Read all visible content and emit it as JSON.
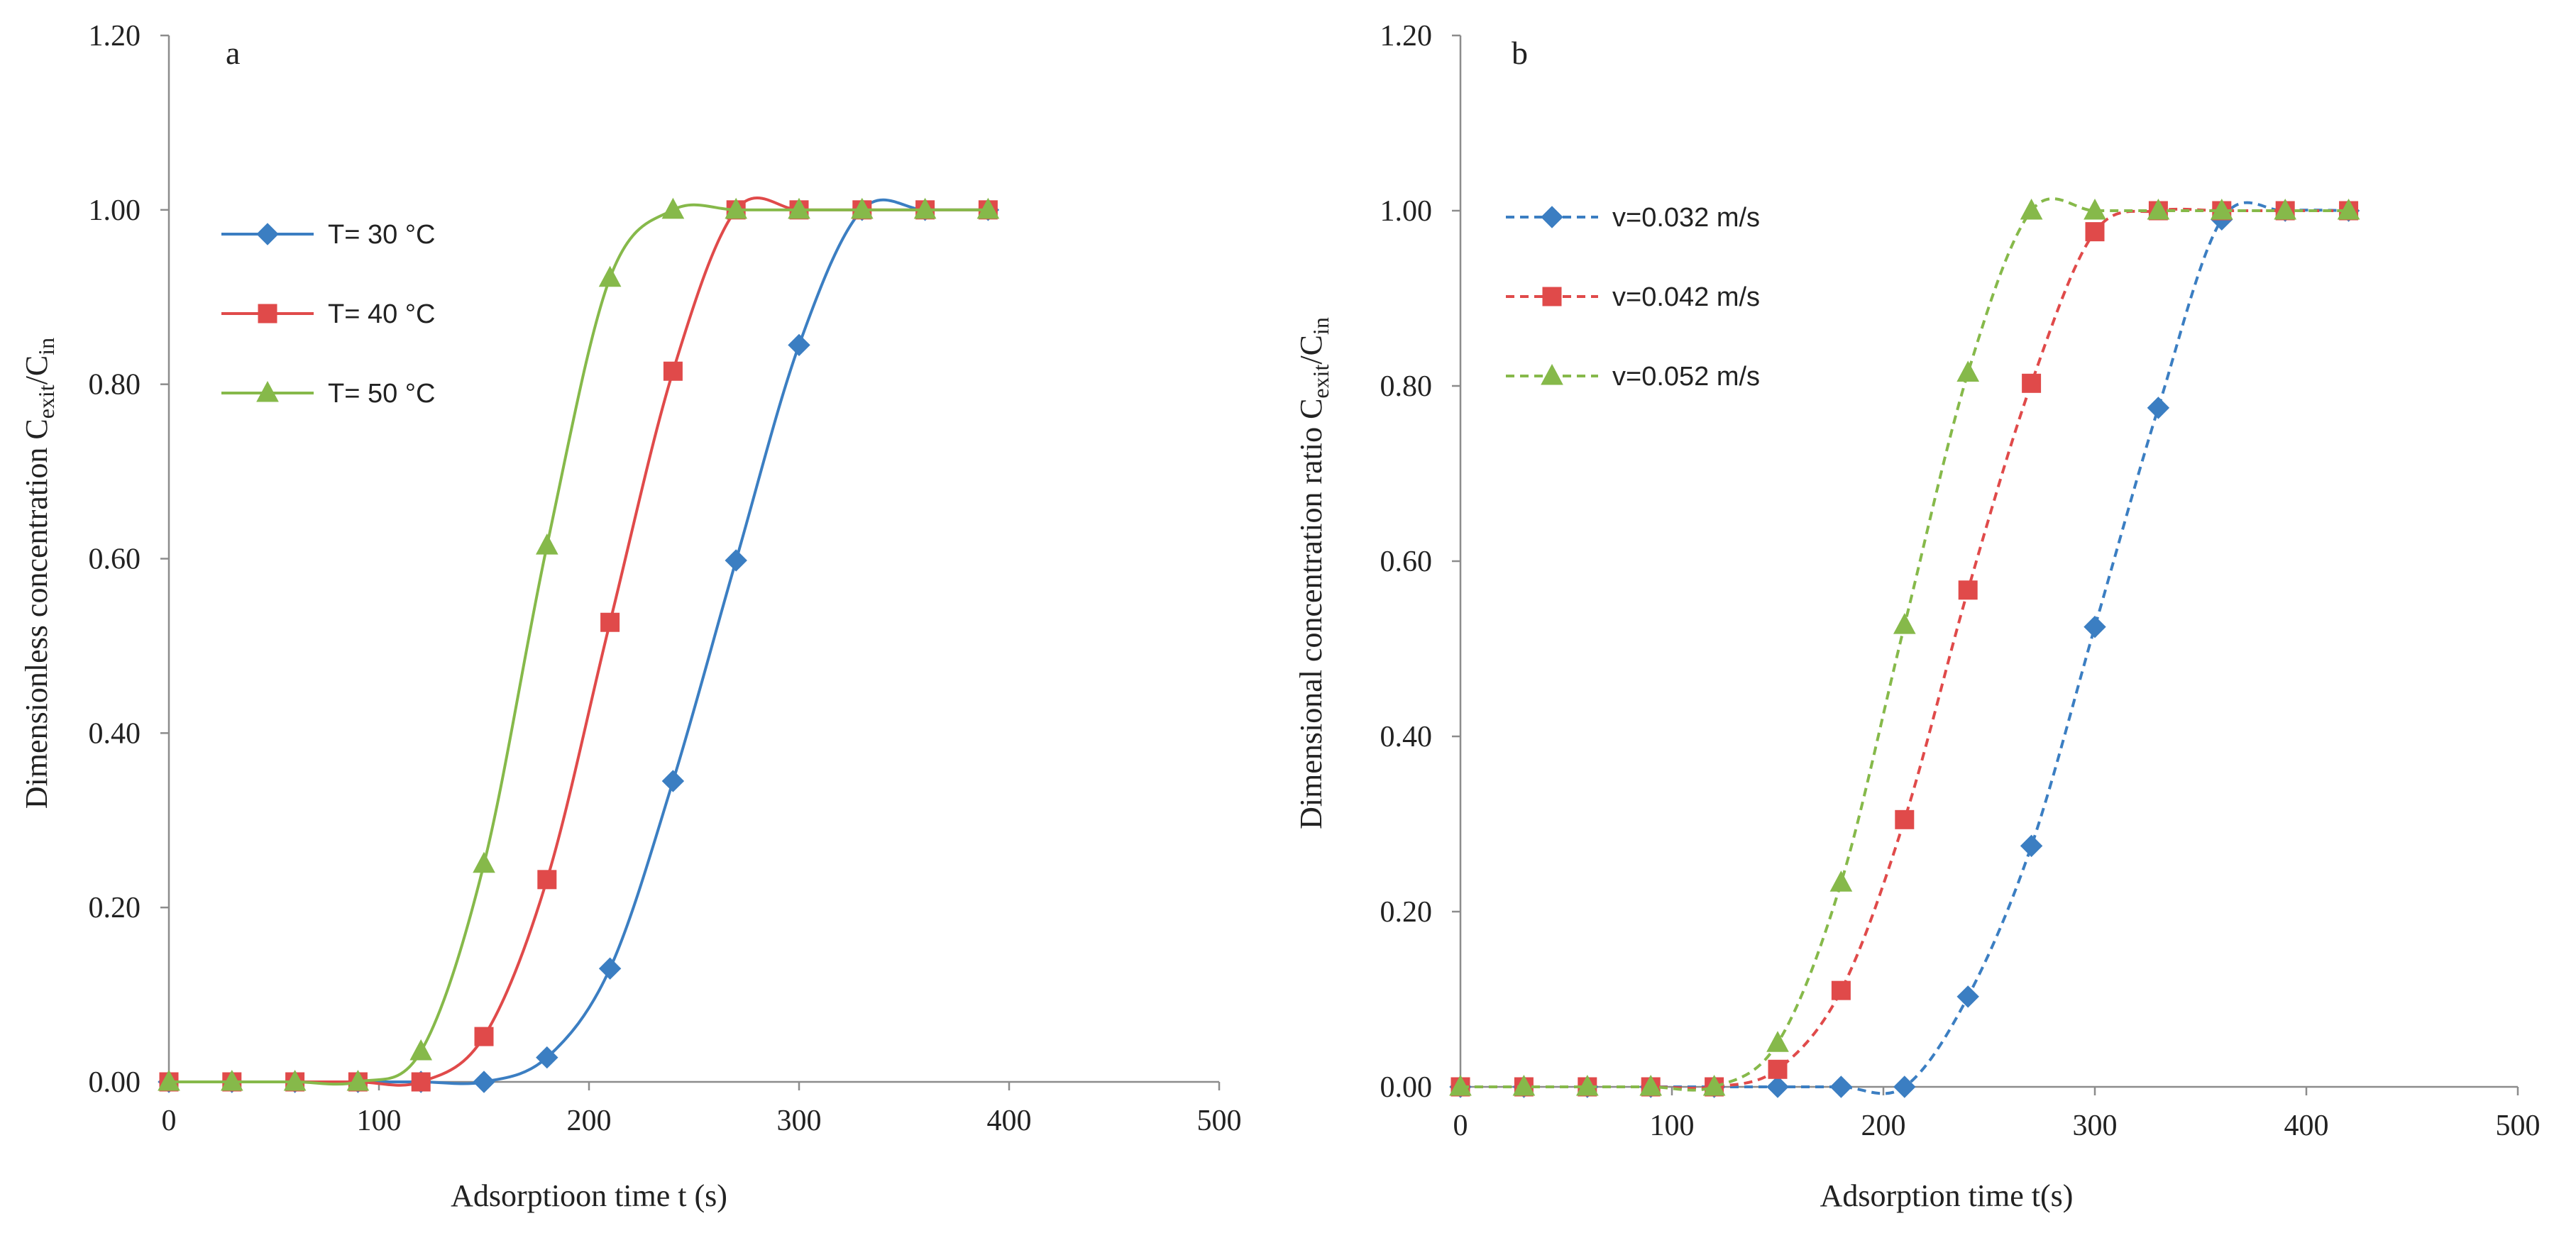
{
  "chart_data": [
    {
      "type": "line",
      "panel_label": "a",
      "xlabel": "Adsorptioon time t (s)",
      "ylabel": {
        "main": "Dimensionless concentration C",
        "sub1": "exit",
        "mid": "/C",
        "sub2": "in"
      },
      "xlim": [
        0,
        500
      ],
      "ylim": [
        0,
        1.2
      ],
      "xticks": [
        "0",
        "100",
        "200",
        "300",
        "400",
        "500"
      ],
      "xtick_values": [
        0,
        100,
        200,
        300,
        400,
        500
      ],
      "yticks": [
        "0.00",
        "0.20",
        "0.40",
        "0.60",
        "0.80",
        "1.00",
        "1.20"
      ],
      "ytick_values": [
        0,
        0.2,
        0.4,
        0.6,
        0.8,
        1.0,
        1.2
      ],
      "grid": false,
      "line_style": "solid",
      "legend_position": "top-left",
      "series": [
        {
          "name": "T= 30 °C",
          "color": "#3b7ec2",
          "marker": "diamond",
          "x": [
            0,
            30,
            60,
            90,
            120,
            150,
            180,
            210,
            240,
            270,
            300,
            330,
            360,
            390
          ],
          "y": [
            0,
            0,
            0,
            0,
            0,
            0,
            0.028,
            0.13,
            0.345,
            0.598,
            0.845,
            1.0,
            1.0,
            1.0
          ]
        },
        {
          "name": "T= 40 °C",
          "color": "#e04a4a",
          "marker": "square",
          "x": [
            0,
            30,
            60,
            90,
            120,
            150,
            180,
            210,
            240,
            270,
            300,
            330,
            360,
            390
          ],
          "y": [
            0,
            0,
            0,
            0,
            0,
            0.052,
            0.232,
            0.527,
            0.815,
            1.0,
            1.0,
            1.0,
            1.0,
            1.0
          ]
        },
        {
          "name": "T= 50 °C",
          "color": "#86b94a",
          "marker": "triangle",
          "x": [
            0,
            30,
            60,
            90,
            120,
            150,
            180,
            210,
            240,
            270,
            300,
            330,
            360,
            390
          ],
          "y": [
            0,
            0,
            0,
            0,
            0.035,
            0.25,
            0.615,
            0.922,
            1.0,
            1.0,
            1.0,
            1.0,
            1.0,
            1.0
          ]
        }
      ]
    },
    {
      "type": "line",
      "panel_label": "b",
      "xlabel": "Adsorption time t(s)",
      "ylabel": {
        "main": "Dimensional concentration ratio C",
        "sub1": "exit",
        "mid": "/C",
        "sub2": "in"
      },
      "xlim": [
        0,
        500
      ],
      "ylim": [
        0,
        1.2
      ],
      "xticks": [
        "0",
        "100",
        "200",
        "300",
        "400",
        "500"
      ],
      "xtick_values": [
        0,
        100,
        200,
        300,
        400,
        500
      ],
      "yticks": [
        "0.00",
        "0.20",
        "0.40",
        "0.60",
        "0.80",
        "1.00",
        "1.20"
      ],
      "ytick_values": [
        0,
        0.2,
        0.4,
        0.6,
        0.8,
        1.0,
        1.2
      ],
      "grid": false,
      "line_style": "dashed",
      "legend_position": "top-left",
      "series": [
        {
          "name": "v=0.032 m/s",
          "color": "#3b7ec2",
          "marker": "diamond",
          "x": [
            0,
            30,
            60,
            90,
            120,
            150,
            180,
            210,
            240,
            270,
            300,
            330,
            360,
            390,
            420
          ],
          "y": [
            0,
            0,
            0,
            0,
            0,
            0,
            0,
            0,
            0.103,
            0.275,
            0.525,
            0.775,
            0.99,
            1.0,
            1.0
          ]
        },
        {
          "name": "v=0.042 m/s",
          "color": "#e04a4a",
          "marker": "square",
          "x": [
            0,
            30,
            60,
            90,
            120,
            150,
            180,
            210,
            240,
            270,
            300,
            330,
            360,
            390,
            420
          ],
          "y": [
            0,
            0,
            0,
            0,
            0,
            0.02,
            0.11,
            0.305,
            0.567,
            0.803,
            0.976,
            1.0,
            1.0,
            1.0,
            1.0
          ]
        },
        {
          "name": "v=0.052 m/s",
          "color": "#86b94a",
          "marker": "triangle",
          "x": [
            0,
            30,
            60,
            90,
            120,
            150,
            180,
            210,
            240,
            270,
            300,
            330,
            360,
            390,
            420
          ],
          "y": [
            0,
            0,
            0,
            0,
            0,
            0.05,
            0.233,
            0.527,
            0.815,
            1.0,
            1.0,
            1.0,
            1.0,
            1.0,
            1.0
          ]
        }
      ]
    }
  ]
}
